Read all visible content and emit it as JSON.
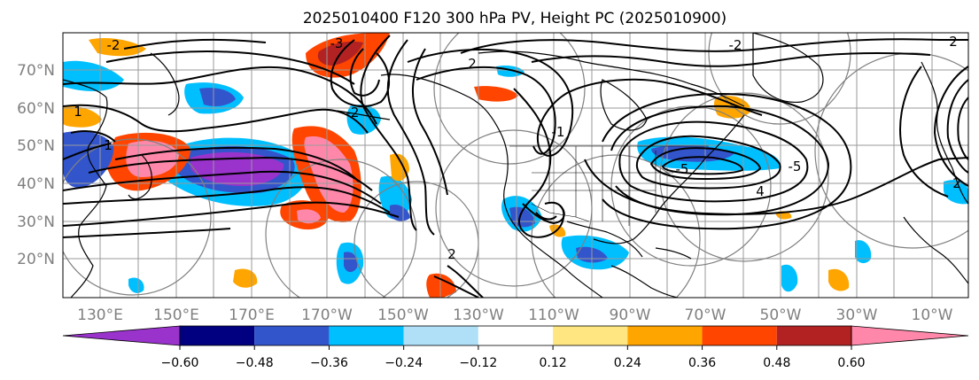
{
  "title": "2025010400 F120 300 hPa PV, Height PC (2025010900)",
  "lat_labels": [
    "70°N",
    "60°N",
    "50°N",
    "40°N",
    "30°N",
    "20°N"
  ],
  "lon_labels": [
    "130°E",
    "150°E",
    "170°E",
    "170°W",
    "150°W",
    "130°W",
    "110°W",
    "90°W",
    "70°W",
    "50°W",
    "30°W",
    "10°W"
  ],
  "colorbar": {
    "ticks": [
      "−0.60",
      "−0.48",
      "−0.36",
      "−0.24",
      "−0.12",
      "0.12",
      "0.24",
      "0.36",
      "0.48",
      "0.60"
    ],
    "colors": [
      "#9933cc",
      "#000080",
      "#3355cc",
      "#00bfff",
      "#b0e0f8",
      "#ffffff",
      "#ffe680",
      "#ffa500",
      "#ff4500",
      "#b22222",
      "#ff88aa"
    ]
  },
  "contour_labels": [
    "2",
    "2",
    "1",
    "1",
    "-2",
    "-3",
    "-2",
    "-1",
    "-5",
    "-5",
    "4",
    "2",
    "-2",
    "2"
  ]
}
